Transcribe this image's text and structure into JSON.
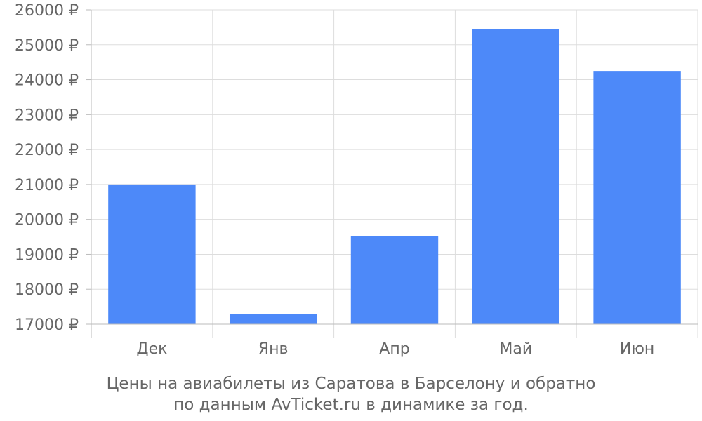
{
  "chart_data": {
    "type": "bar",
    "categories": [
      "Дек",
      "Янв",
      "Апр",
      "Май",
      "Июн"
    ],
    "series": [
      {
        "values": [
          21000,
          17300,
          19530,
          25450,
          24250
        ]
      }
    ],
    "ylim": [
      17000,
      26000
    ],
    "y_ticks": [
      17000,
      18000,
      19000,
      20000,
      21000,
      22000,
      23000,
      24000,
      25000,
      26000
    ],
    "y_tick_suffix": " ₽",
    "grid": true,
    "bar_color": "#4d89f9"
  },
  "caption": {
    "line1": "Цены на авиабилеты из Саратова в Барселону и обратно",
    "line2": "по данным AvTicket.ru в динамике за год."
  }
}
